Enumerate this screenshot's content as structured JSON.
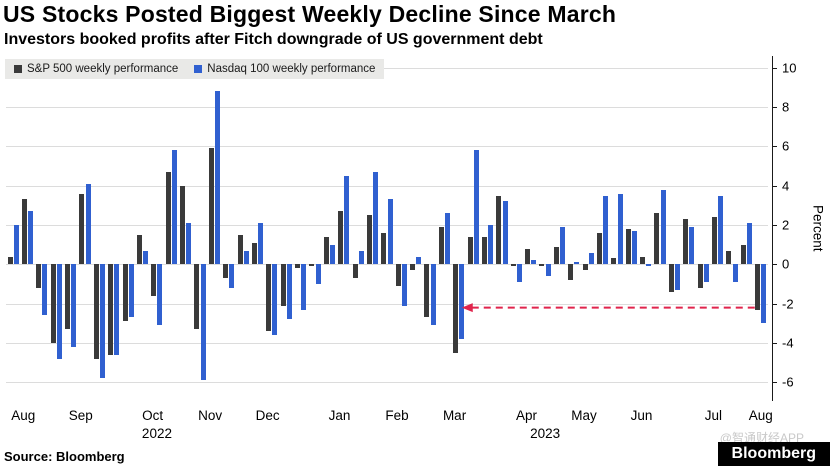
{
  "chart_data": {
    "type": "bar",
    "title": "US Stocks Posted Biggest Weekly Decline Since March",
    "subtitle": "Investors booked profits after Fitch downgrade of US government debt",
    "ylabel": "Percent",
    "ylim": [
      -6.9,
      10.6
    ],
    "yticks": [
      10,
      8,
      6,
      4,
      2,
      0,
      -2,
      -4,
      -6
    ],
    "grid": true,
    "legend_position": "top-left",
    "x_unit": "week",
    "series": [
      {
        "name": "S&P 500 weekly performance",
        "color": "#3a3a3a",
        "values": [
          0.4,
          3.3,
          -1.2,
          -4.0,
          -3.3,
          3.6,
          -4.8,
          -4.6,
          -2.9,
          1.5,
          -1.6,
          4.7,
          4.0,
          -3.3,
          5.9,
          -0.7,
          1.5,
          1.1,
          -3.4,
          -2.1,
          -0.2,
          -0.1,
          1.4,
          2.7,
          -0.7,
          2.5,
          1.6,
          -1.1,
          -0.3,
          -2.7,
          1.9,
          -4.5,
          1.4,
          1.4,
          3.5,
          -0.1,
          0.8,
          -0.1,
          0.9,
          -0.8,
          -0.3,
          1.6,
          0.3,
          1.8,
          0.4,
          2.6,
          -1.4,
          2.3,
          -1.2,
          2.4,
          0.7,
          1.0,
          -2.3
        ]
      },
      {
        "name": "Nasdaq 100 weekly performance",
        "color": "#3060d0",
        "values": [
          2.0,
          2.7,
          -2.6,
          -4.8,
          -4.2,
          4.1,
          -5.8,
          -4.6,
          -2.7,
          0.7,
          -3.1,
          5.8,
          2.1,
          -5.9,
          8.8,
          -1.2,
          0.7,
          2.1,
          -3.6,
          -2.8,
          -2.3,
          -1.0,
          1.0,
          4.5,
          0.7,
          4.7,
          3.3,
          -2.1,
          0.4,
          -3.1,
          2.6,
          -3.8,
          5.8,
          2.0,
          3.2,
          -0.9,
          0.2,
          -0.6,
          1.9,
          0.1,
          0.6,
          3.5,
          3.6,
          1.7,
          -0.1,
          3.8,
          -1.3,
          1.9,
          -0.9,
          3.5,
          -0.9,
          2.1,
          -3.0
        ]
      }
    ],
    "months": [
      {
        "label": "Aug",
        "start": 0,
        "count": 4
      },
      {
        "label": "Sep",
        "start": 4,
        "count": 5
      },
      {
        "label": "Oct",
        "start": 9,
        "count": 4
      },
      {
        "label": "Nov",
        "start": 13,
        "count": 4
      },
      {
        "label": "Dec",
        "start": 17,
        "count": 5
      },
      {
        "label": "Jan",
        "start": 22,
        "count": 4
      },
      {
        "label": "Feb",
        "start": 26,
        "count": 4
      },
      {
        "label": "Mar",
        "start": 30,
        "count": 5
      },
      {
        "label": "Apr",
        "start": 35,
        "count": 4
      },
      {
        "label": "May",
        "start": 39,
        "count": 4
      },
      {
        "label": "Jun",
        "start": 43,
        "count": 5
      },
      {
        "label": "Jul",
        "start": 48,
        "count": 4
      },
      {
        "label": "Aug",
        "start": 52,
        "count": 1
      }
    ],
    "years": [
      {
        "label": "2022",
        "week": 10.5
      },
      {
        "label": "2023",
        "week": 37.5
      }
    ],
    "annotation": {
      "type": "dashed-arrow-left",
      "y": -2.2,
      "from_week": 31.7,
      "to_week": 52.2,
      "color": "#e0244c"
    }
  },
  "footer": {
    "source": "Source: Bloomberg",
    "logo": "Bloomberg",
    "watermark": "@智通财经APP"
  }
}
